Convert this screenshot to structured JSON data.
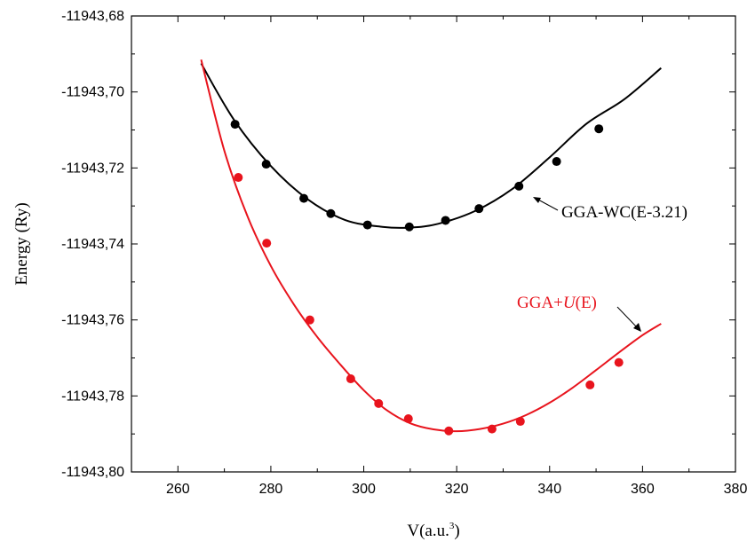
{
  "chart_data": {
    "type": "scatter",
    "xlabel": "V(a.u.",
    "xlabel_sup": "3",
    "xlabel_close": ")",
    "ylabel": "Energy (Ry)",
    "xlim": [
      250,
      380
    ],
    "ylim": [
      -11943.8,
      -11943.68
    ],
    "x_ticks": [
      260,
      280,
      300,
      320,
      340,
      360,
      380
    ],
    "x_tick_labels": [
      "260",
      "280",
      "300",
      "320",
      "340",
      "360",
      "380"
    ],
    "y_ticks": [
      -11943.8,
      -11943.78,
      -11943.76,
      -11943.74,
      -11943.72,
      -11943.7,
      -11943.68
    ],
    "y_tick_labels": [
      "-11943,80",
      "-11943,78",
      "-11943,76",
      "-11943,74",
      "-11943,72",
      "-11943,70",
      "-11943,68"
    ],
    "grid": false,
    "series": [
      {
        "label_parts": [
          "GGA-WC(E-3.21)"
        ],
        "color": "#000000",
        "points": {
          "x": [
            272.3,
            279.0,
            287.1,
            292.9,
            300.8,
            309.8,
            317.6,
            324.8,
            333.4,
            341.5,
            350.6
          ],
          "y": [
            -11943.7085,
            -11943.719,
            -11943.728,
            -11943.732,
            -11943.735,
            -11943.7355,
            -11943.7338,
            -11943.7307,
            -11943.7248,
            -11943.7183,
            -11943.7097
          ]
        },
        "fit": {
          "x": [
            265,
            272,
            280,
            288,
            296,
            304,
            310,
            316,
            324,
            332,
            340,
            348,
            356,
            364
          ],
          "y": [
            -11943.6925,
            -11943.7072,
            -11943.7195,
            -11943.7283,
            -11943.7337,
            -11943.7355,
            -11943.7357,
            -11943.7347,
            -11943.7313,
            -11943.7255,
            -11943.7172,
            -11943.7083,
            -11943.702,
            -11943.6937
          ]
        }
      },
      {
        "label_parts": [
          "GGA+",
          "U",
          "(E)"
        ],
        "color": "#e8141d",
        "points": {
          "x": [
            273.0,
            279.1,
            288.4,
            297.2,
            303.2,
            309.6,
            318.3,
            327.6,
            333.7,
            348.7,
            354.9
          ],
          "y": [
            -11943.7225,
            -11943.7398,
            -11943.76,
            -11943.7755,
            -11943.782,
            -11943.786,
            -11943.7892,
            -11943.7887,
            -11943.7867,
            -11943.7771,
            -11943.7712
          ]
        },
        "fit": {
          "x": [
            265,
            270,
            275,
            280,
            285,
            290,
            295,
            300,
            305,
            310,
            315,
            320,
            325,
            330,
            335,
            340,
            345,
            350,
            355,
            360,
            364
          ],
          "y": [
            -11943.6915,
            -11943.7155,
            -11943.7328,
            -11943.7458,
            -11943.756,
            -11943.7645,
            -11943.7718,
            -11943.7785,
            -11943.7838,
            -11943.7872,
            -11943.7888,
            -11943.7893,
            -11943.7887,
            -11943.7873,
            -11943.785,
            -11943.7818,
            -11943.7778,
            -11943.7732,
            -11943.7685,
            -11943.764,
            -11943.761
          ]
        }
      }
    ]
  }
}
